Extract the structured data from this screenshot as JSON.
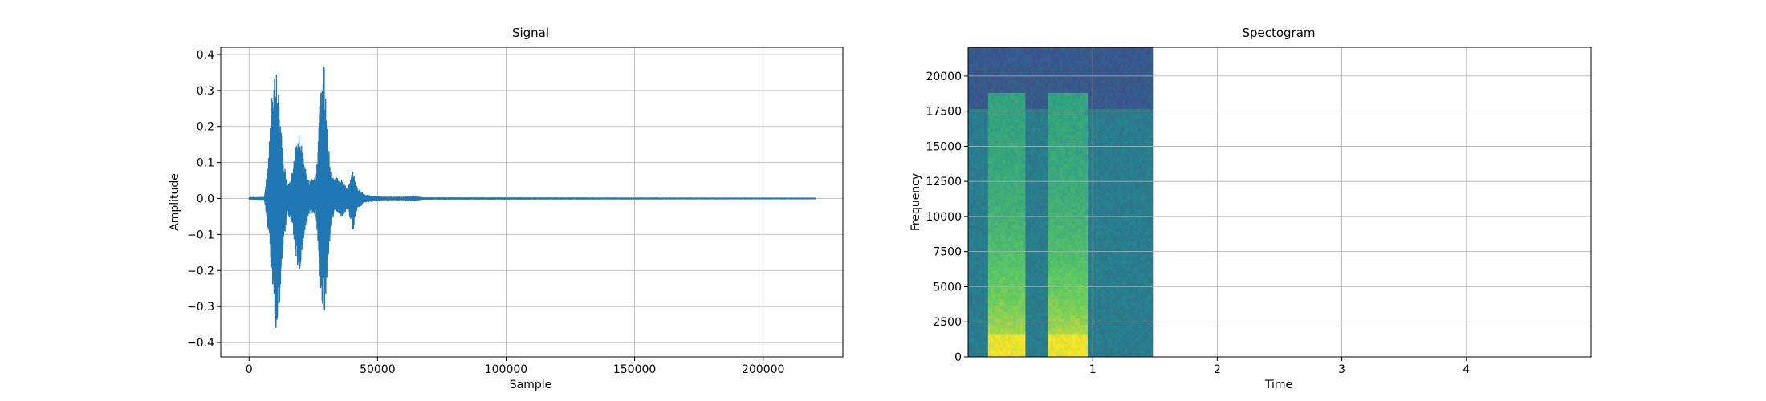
{
  "chart_data": [
    {
      "type": "line",
      "title": "Signal",
      "xlabel": "Sample",
      "ylabel": "Amplitude",
      "xlim": [
        -11000,
        231000
      ],
      "ylim": [
        -0.44,
        0.42
      ],
      "grid": true,
      "color": "#1f77b4",
      "x_ticks": [
        {
          "value": 0,
          "label": "0"
        },
        {
          "value": 50000,
          "label": "50000"
        },
        {
          "value": 100000,
          "label": "100000"
        },
        {
          "value": 150000,
          "label": "150000"
        },
        {
          "value": 200000,
          "label": "200000"
        }
      ],
      "y_ticks": [
        {
          "value": -0.4,
          "label": "−0.4"
        },
        {
          "value": -0.3,
          "label": "−0.3"
        },
        {
          "value": -0.2,
          "label": "−0.2"
        },
        {
          "value": -0.1,
          "label": "−0.1"
        },
        {
          "value": 0.0,
          "label": "0.0"
        },
        {
          "value": 0.1,
          "label": "0.1"
        },
        {
          "value": 0.2,
          "label": "0.2"
        },
        {
          "value": 0.3,
          "label": "0.3"
        },
        {
          "value": 0.4,
          "label": "0.4"
        }
      ],
      "x_extent": [
        0,
        220500
      ],
      "envelope": [
        {
          "x": 0,
          "min": -0.002,
          "max": 0.003
        },
        {
          "x": 6000,
          "min": -0.003,
          "max": 0.003
        },
        {
          "x": 7500,
          "min": -0.09,
          "max": 0.11
        },
        {
          "x": 9000,
          "min": -0.25,
          "max": 0.3
        },
        {
          "x": 10500,
          "min": -0.39,
          "max": 0.36
        },
        {
          "x": 12000,
          "min": -0.3,
          "max": 0.25
        },
        {
          "x": 13500,
          "min": -0.12,
          "max": 0.1
        },
        {
          "x": 15000,
          "min": -0.04,
          "max": 0.04
        },
        {
          "x": 17000,
          "min": -0.08,
          "max": 0.08
        },
        {
          "x": 18500,
          "min": -0.18,
          "max": 0.17
        },
        {
          "x": 19500,
          "min": -0.23,
          "max": 0.21
        },
        {
          "x": 21000,
          "min": -0.12,
          "max": 0.12
        },
        {
          "x": 23000,
          "min": -0.05,
          "max": 0.05
        },
        {
          "x": 26000,
          "min": -0.04,
          "max": 0.06
        },
        {
          "x": 28000,
          "min": -0.28,
          "max": 0.3
        },
        {
          "x": 29200,
          "min": -0.33,
          "max": 0.38
        },
        {
          "x": 30500,
          "min": -0.2,
          "max": 0.18
        },
        {
          "x": 32000,
          "min": -0.07,
          "max": 0.06
        },
        {
          "x": 33500,
          "min": -0.03,
          "max": 0.06
        },
        {
          "x": 36000,
          "min": -0.05,
          "max": 0.05
        },
        {
          "x": 38500,
          "min": -0.03,
          "max": 0.03
        },
        {
          "x": 40500,
          "min": -0.09,
          "max": 0.08
        },
        {
          "x": 42000,
          "min": -0.03,
          "max": 0.03
        },
        {
          "x": 45000,
          "min": -0.01,
          "max": 0.01
        },
        {
          "x": 52000,
          "min": -0.004,
          "max": 0.004
        },
        {
          "x": 60000,
          "min": -0.004,
          "max": 0.004
        },
        {
          "x": 64000,
          "min": -0.006,
          "max": 0.006
        },
        {
          "x": 68000,
          "min": -0.002,
          "max": 0.002
        },
        {
          "x": 220500,
          "min": -0.001,
          "max": 0.001
        }
      ]
    },
    {
      "type": "heatmap",
      "title": "Spectogram",
      "xlabel": "Time",
      "ylabel": "Frequency",
      "xlim": [
        0,
        5.0
      ],
      "ylim": [
        0,
        22050
      ],
      "grid": true,
      "colormap": "viridis",
      "x_ticks": [
        {
          "value": 1,
          "label": "1"
        },
        {
          "value": 2,
          "label": "2"
        },
        {
          "value": 3,
          "label": "3"
        },
        {
          "value": 4,
          "label": "4"
        }
      ],
      "y_ticks": [
        {
          "value": 0,
          "label": "0"
        },
        {
          "value": 2500,
          "label": "2500"
        },
        {
          "value": 5000,
          "label": "5000"
        },
        {
          "value": 7500,
          "label": "7500"
        },
        {
          "value": 10000,
          "label": "10000"
        },
        {
          "value": 12500,
          "label": "12500"
        },
        {
          "value": 15000,
          "label": "15000"
        },
        {
          "value": 17500,
          "label": "17500"
        },
        {
          "value": 20000,
          "label": "20000"
        }
      ],
      "data_extent": {
        "time": [
          0,
          1.48
        ],
        "frequency": [
          0,
          22050
        ]
      },
      "bursts": [
        {
          "time_start": 0.17,
          "time_end": 0.47,
          "frequency_max": 18800
        },
        {
          "time_start": 0.64,
          "time_end": 0.96,
          "frequency_max": 18800
        }
      ],
      "background_regions": [
        {
          "frequency_min": 17800,
          "frequency_max": 22050,
          "level": 0.28
        },
        {
          "frequency_min": 0,
          "frequency_max": 17800,
          "level": 0.42
        }
      ]
    }
  ]
}
